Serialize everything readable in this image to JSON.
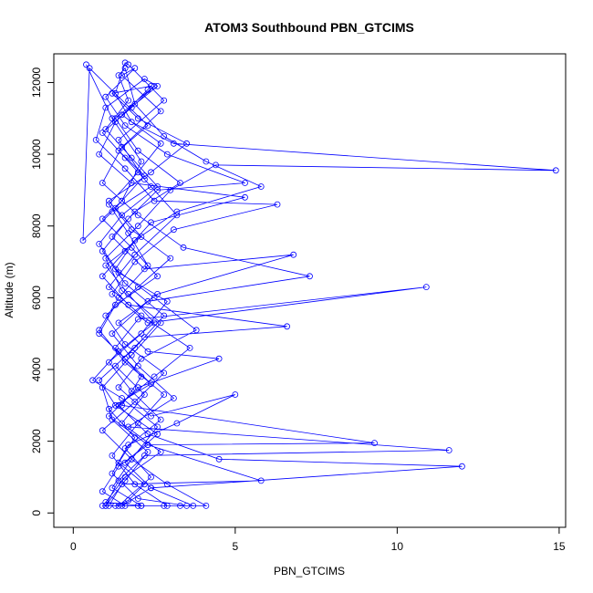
{
  "chart_data": {
    "type": "line",
    "title": "ATOM3 Southbound PBN_GTCIMS",
    "xlabel": "PBN_GTCIMS",
    "ylabel": "Altitude (m)",
    "xlim": [
      -0.6,
      15.2
    ],
    "ylim": [
      -400,
      12800
    ],
    "x_ticks": [
      0,
      5,
      10,
      15
    ],
    "y_ticks": [
      0,
      2000,
      4000,
      6000,
      8000,
      10000,
      12000
    ],
    "grid": false,
    "legend": "none",
    "series_color": "#0000ff",
    "marker": "open-circle",
    "series": [
      {
        "values": [
          [
            0.4,
            12500
          ],
          [
            1.2,
            11000
          ],
          [
            2.1,
            9800
          ],
          [
            1.5,
            8700
          ],
          [
            0.9,
            8200
          ],
          [
            1.8,
            7400
          ],
          [
            2.6,
            6600
          ],
          [
            1.3,
            5800
          ],
          [
            0.8,
            5000
          ],
          [
            1.6,
            4300
          ],
          [
            2.4,
            3600
          ],
          [
            1.1,
            2900
          ],
          [
            1.9,
            2100
          ],
          [
            1.4,
            1400
          ],
          [
            2.2,
            800
          ],
          [
            1.7,
            350
          ],
          [
            1.3,
            200
          ],
          [
            0.9,
            200
          ],
          [
            1.0,
            200
          ],
          [
            1.6,
            900
          ],
          [
            2.3,
            1700
          ],
          [
            1.2,
            2600
          ],
          [
            0.9,
            3500
          ],
          [
            1.8,
            4400
          ],
          [
            2.7,
            5300
          ],
          [
            1.5,
            6200
          ],
          [
            1.0,
            7100
          ],
          [
            2.0,
            8000
          ],
          [
            3.0,
            9000
          ],
          [
            4.4,
            9700
          ],
          [
            14.9,
            9550
          ],
          [
            3.1,
            10300
          ],
          [
            1.8,
            10900
          ],
          [
            1.3,
            11700
          ],
          [
            1.6,
            12550
          ],
          [
            1.7,
            12500
          ],
          [
            2.8,
            11500
          ],
          [
            1.4,
            10400
          ],
          [
            2.2,
            9300
          ],
          [
            3.2,
            8300
          ],
          [
            1.9,
            7200
          ],
          [
            1.1,
            6300
          ],
          [
            2.1,
            5500
          ],
          [
            3.6,
            4600
          ],
          [
            2.5,
            3800
          ],
          [
            1.4,
            3000
          ],
          [
            2.3,
            2200
          ],
          [
            4.5,
            1500
          ],
          [
            12.0,
            1300
          ],
          [
            2.4,
            700
          ],
          [
            1.5,
            200
          ],
          [
            2.8,
            200
          ],
          [
            2.9,
            200
          ],
          [
            1.9,
            800
          ],
          [
            1.2,
            1600
          ],
          [
            2.0,
            2500
          ],
          [
            2.8,
            3300
          ],
          [
            1.6,
            4200
          ],
          [
            0.8,
            5100
          ],
          [
            1.4,
            6000
          ],
          [
            2.3,
            6900
          ],
          [
            1.7,
            7800
          ],
          [
            1.1,
            8600
          ],
          [
            2.0,
            9500
          ],
          [
            2.7,
            10300
          ],
          [
            1.5,
            11100
          ],
          [
            2.6,
            11900
          ],
          [
            2.2,
            12100
          ],
          [
            1.0,
            11300
          ],
          [
            0.7,
            10400
          ],
          [
            1.6,
            9600
          ],
          [
            2.5,
            8700
          ],
          [
            6.3,
            8600
          ],
          [
            3.1,
            7900
          ],
          [
            1.9,
            7000
          ],
          [
            1.2,
            6100
          ],
          [
            2.3,
            5300
          ],
          [
            10.9,
            6300
          ],
          [
            2.0,
            5400
          ],
          [
            1.3,
            4600
          ],
          [
            2.1,
            3800
          ],
          [
            1.5,
            3000
          ],
          [
            9.3,
            1950
          ],
          [
            2.3,
            1900
          ],
          [
            1.4,
            1300
          ],
          [
            0.9,
            600
          ],
          [
            1.6,
            200
          ],
          [
            3.3,
            200
          ],
          [
            3.7,
            200
          ],
          [
            2.4,
            700
          ],
          [
            1.6,
            1400
          ],
          [
            2.6,
            2200
          ],
          [
            1.3,
            3000
          ],
          [
            0.8,
            3700
          ],
          [
            1.9,
            4600
          ],
          [
            2.8,
            5500
          ],
          [
            1.6,
            6400
          ],
          [
            0.9,
            7300
          ],
          [
            1.7,
            8200
          ],
          [
            2.6,
            9000
          ],
          [
            5.3,
            9200
          ],
          [
            2.9,
            10000
          ],
          [
            1.6,
            10800
          ],
          [
            1.0,
            11600
          ],
          [
            1.9,
            12400
          ],
          [
            1.5,
            12200
          ],
          [
            2.7,
            11200
          ],
          [
            1.5,
            10200
          ],
          [
            0.9,
            9200
          ],
          [
            2.0,
            8300
          ],
          [
            3.4,
            7400
          ],
          [
            7.3,
            6600
          ],
          [
            2.3,
            5900
          ],
          [
            1.2,
            5000
          ],
          [
            2.0,
            4100
          ],
          [
            3.1,
            3200
          ],
          [
            1.7,
            2400
          ],
          [
            11.6,
            1750
          ],
          [
            2.2,
            1600
          ],
          [
            1.4,
            900
          ],
          [
            1.0,
            200
          ],
          [
            2.0,
            200
          ],
          [
            2.1,
            200
          ],
          [
            1.2,
            700
          ],
          [
            1.8,
            1500
          ],
          [
            2.6,
            2400
          ],
          [
            1.5,
            3200
          ],
          [
            0.6,
            3700
          ],
          [
            1.4,
            4500
          ],
          [
            2.5,
            5300
          ],
          [
            1.7,
            6100
          ],
          [
            1.0,
            6900
          ],
          [
            2.1,
            7700
          ],
          [
            1.3,
            8500
          ],
          [
            2.2,
            9400
          ],
          [
            1.4,
            10100
          ],
          [
            2.3,
            10800
          ],
          [
            0.5,
            12400
          ],
          [
            0.3,
            7600
          ],
          [
            1.2,
            8400
          ],
          [
            2.4,
            9100
          ],
          [
            1.6,
            9900
          ],
          [
            0.9,
            10600
          ],
          [
            1.8,
            11300
          ],
          [
            2.5,
            11900
          ],
          [
            1.3,
            11000
          ],
          [
            2.0,
            10100
          ],
          [
            3.3,
            9200
          ],
          [
            1.9,
            8400
          ],
          [
            1.2,
            7700
          ],
          [
            2.2,
            6800
          ],
          [
            6.8,
            7200
          ],
          [
            2.6,
            6100
          ],
          [
            1.4,
            5300
          ],
          [
            2.3,
            4500
          ],
          [
            4.5,
            4300
          ],
          [
            2.0,
            3500
          ],
          [
            1.1,
            2700
          ],
          [
            2.3,
            1900
          ],
          [
            5.8,
            900
          ],
          [
            1.5,
            800
          ],
          [
            1.1,
            200
          ],
          [
            1.4,
            200
          ],
          [
            2.4,
            1000
          ],
          [
            1.6,
            1800
          ],
          [
            2.7,
            2600
          ],
          [
            1.8,
            3400
          ],
          [
            1.1,
            4200
          ],
          [
            2.1,
            5000
          ],
          [
            2.9,
            5900
          ],
          [
            1.4,
            6700
          ],
          [
            0.8,
            7500
          ],
          [
            1.5,
            8300
          ],
          [
            2.6,
            9100
          ],
          [
            1.8,
            9900
          ],
          [
            1.0,
            10700
          ],
          [
            1.7,
            11500
          ],
          [
            1.4,
            12200
          ],
          [
            1.6,
            12400
          ],
          [
            1.9,
            11400
          ],
          [
            2.8,
            10500
          ],
          [
            4.1,
            9800
          ],
          [
            5.8,
            9100
          ],
          [
            3.2,
            8400
          ],
          [
            1.9,
            7600
          ],
          [
            1.3,
            6800
          ],
          [
            2.5,
            6000
          ],
          [
            3.8,
            5100
          ],
          [
            2.1,
            4300
          ],
          [
            1.4,
            3500
          ],
          [
            2.4,
            2700
          ],
          [
            5.0,
            3300
          ],
          [
            3.2,
            2500
          ],
          [
            1.7,
            1900
          ],
          [
            1.2,
            1100
          ],
          [
            2.0,
            400
          ],
          [
            3.5,
            200
          ],
          [
            4.1,
            200
          ],
          [
            2.9,
            800
          ],
          [
            1.8,
            1500
          ],
          [
            0.9,
            2300
          ],
          [
            1.9,
            3100
          ],
          [
            2.8,
            3900
          ],
          [
            1.6,
            4700
          ],
          [
            1.0,
            5500
          ],
          [
            2.0,
            6300
          ],
          [
            3.0,
            7100
          ],
          [
            1.8,
            7900
          ],
          [
            1.1,
            8700
          ],
          [
            2.4,
            9500
          ],
          [
            3.5,
            10300
          ],
          [
            2.0,
            11000
          ],
          [
            1.2,
            11700
          ],
          [
            2.4,
            11900
          ],
          [
            2.3,
            11800
          ],
          [
            1.3,
            10900
          ],
          [
            0.8,
            10000
          ],
          [
            1.8,
            9200
          ],
          [
            5.3,
            8800
          ],
          [
            2.4,
            8100
          ],
          [
            1.6,
            7300
          ],
          [
            0.9,
            6600
          ],
          [
            1.7,
            5800
          ],
          [
            6.6,
            5200
          ],
          [
            2.2,
            4900
          ],
          [
            1.3,
            4100
          ],
          [
            2.2,
            3300
          ],
          [
            1.5,
            2500
          ],
          [
            2.7,
            1700
          ],
          [
            1.6,
            1000
          ],
          [
            1.0,
            300
          ],
          [
            2.1,
            200
          ]
        ]
      }
    ]
  }
}
